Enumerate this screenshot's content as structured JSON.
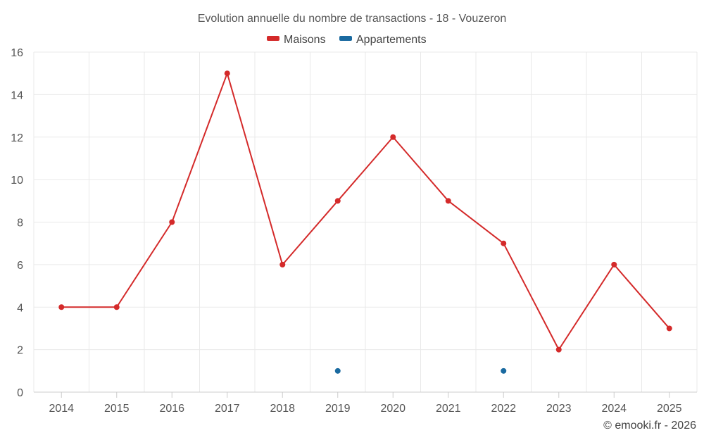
{
  "chart_data": {
    "type": "line",
    "title": "Evolution annuelle du nombre de transactions - 18 - Vouzeron",
    "categories": [
      "2014",
      "2015",
      "2016",
      "2017",
      "2018",
      "2019",
      "2020",
      "2021",
      "2022",
      "2023",
      "2024",
      "2025"
    ],
    "series": [
      {
        "name": "Maisons",
        "color": "#d42a2a",
        "values": [
          4,
          4,
          8,
          15,
          6,
          9,
          12,
          9,
          7,
          2,
          6,
          3
        ]
      },
      {
        "name": "Appartements",
        "color": "#1a6aa0",
        "values": [
          null,
          null,
          null,
          null,
          null,
          1,
          null,
          null,
          1,
          null,
          null,
          null
        ]
      }
    ],
    "ylim": [
      0,
      16
    ],
    "yticks": [
      0,
      2,
      4,
      6,
      8,
      10,
      12,
      14,
      16
    ],
    "xlabel": "",
    "ylabel": "",
    "grid": true,
    "legend_position": "top-center"
  },
  "credit": "© emooki.fr - 2026"
}
